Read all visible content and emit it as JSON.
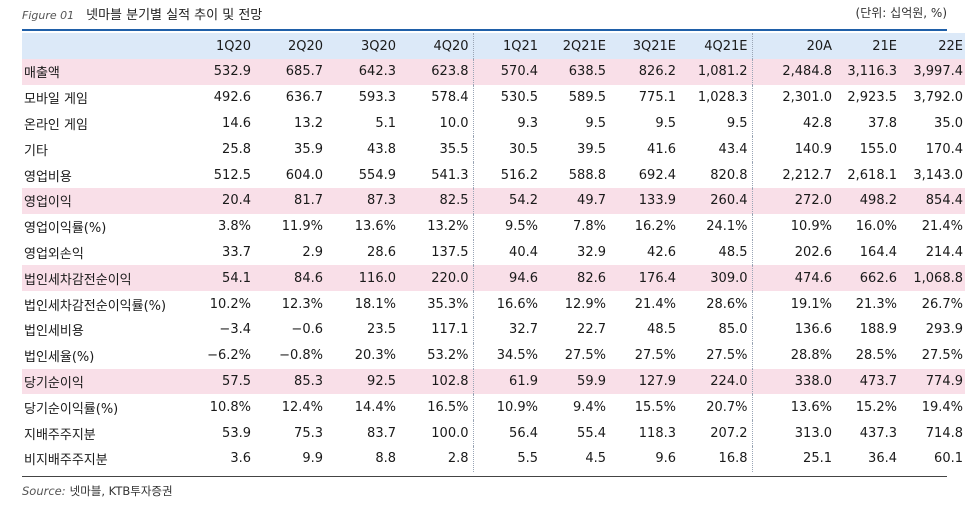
{
  "figure_label": "Figure 01",
  "title": "넷마블 분기별 실적 추이 및 전망",
  "unit": "(단위: 십억원, %)",
  "headers": [
    "",
    "1Q20",
    "2Q20",
    "3Q20",
    "4Q20",
    "1Q21",
    "2Q21E",
    "3Q21E",
    "4Q21E",
    "20A",
    "21E",
    "22E"
  ],
  "rows": [
    {
      "label": "매출액",
      "highlight": true,
      "values": [
        "532.9",
        "685.7",
        "642.3",
        "623.8",
        "570.4",
        "638.5",
        "826.2",
        "1,081.2",
        "2,484.8",
        "3,116.3",
        "3,997.4"
      ]
    },
    {
      "label": "모바일 게임",
      "highlight": false,
      "values": [
        "492.6",
        "636.7",
        "593.3",
        "578.4",
        "530.5",
        "589.5",
        "775.1",
        "1,028.3",
        "2,301.0",
        "2,923.5",
        "3,792.0"
      ]
    },
    {
      "label": "온라인 게임",
      "highlight": false,
      "values": [
        "14.6",
        "13.2",
        "5.1",
        "10.0",
        "9.3",
        "9.5",
        "9.5",
        "9.5",
        "42.8",
        "37.8",
        "35.0"
      ]
    },
    {
      "label": "기타",
      "highlight": false,
      "values": [
        "25.8",
        "35.9",
        "43.8",
        "35.5",
        "30.5",
        "39.5",
        "41.6",
        "43.4",
        "140.9",
        "155.0",
        "170.4"
      ]
    },
    {
      "label": "영업비용",
      "highlight": false,
      "values": [
        "512.5",
        "604.0",
        "554.9",
        "541.3",
        "516.2",
        "588.8",
        "692.4",
        "820.8",
        "2,212.7",
        "2,618.1",
        "3,143.0"
      ]
    },
    {
      "label": "영업이익",
      "highlight": true,
      "values": [
        "20.4",
        "81.7",
        "87.3",
        "82.5",
        "54.2",
        "49.7",
        "133.9",
        "260.4",
        "272.0",
        "498.2",
        "854.4"
      ]
    },
    {
      "label": "영업이익률(%)",
      "highlight": false,
      "values": [
        "3.8%",
        "11.9%",
        "13.6%",
        "13.2%",
        "9.5%",
        "7.8%",
        "16.2%",
        "24.1%",
        "10.9%",
        "16.0%",
        "21.4%"
      ]
    },
    {
      "label": "영업외손익",
      "highlight": false,
      "values": [
        "33.7",
        "2.9",
        "28.6",
        "137.5",
        "40.4",
        "32.9",
        "42.6",
        "48.5",
        "202.6",
        "164.4",
        "214.4"
      ]
    },
    {
      "label": "법인세차감전순이익",
      "highlight": true,
      "values": [
        "54.1",
        "84.6",
        "116.0",
        "220.0",
        "94.6",
        "82.6",
        "176.4",
        "309.0",
        "474.6",
        "662.6",
        "1,068.8"
      ]
    },
    {
      "label": "법인세차감전순이익률(%)",
      "highlight": false,
      "values": [
        "10.2%",
        "12.3%",
        "18.1%",
        "35.3%",
        "16.6%",
        "12.9%",
        "21.4%",
        "28.6%",
        "19.1%",
        "21.3%",
        "26.7%"
      ]
    },
    {
      "label": "법인세비용",
      "highlight": false,
      "values": [
        "−3.4",
        "−0.6",
        "23.5",
        "117.1",
        "32.7",
        "22.7",
        "48.5",
        "85.0",
        "136.6",
        "188.9",
        "293.9"
      ]
    },
    {
      "label": "법인세율(%)",
      "highlight": false,
      "values": [
        "−6.2%",
        "−0.8%",
        "20.3%",
        "53.2%",
        "34.5%",
        "27.5%",
        "27.5%",
        "27.5%",
        "28.8%",
        "28.5%",
        "27.5%"
      ]
    },
    {
      "label": "당기순이익",
      "highlight": true,
      "values": [
        "57.5",
        "85.3",
        "92.5",
        "102.8",
        "61.9",
        "59.9",
        "127.9",
        "224.0",
        "338.0",
        "473.7",
        "774.9"
      ]
    },
    {
      "label": "당기순이익률(%)",
      "highlight": false,
      "values": [
        "10.8%",
        "12.4%",
        "14.4%",
        "16.5%",
        "10.9%",
        "9.4%",
        "15.5%",
        "20.7%",
        "13.6%",
        "15.2%",
        "19.4%"
      ]
    },
    {
      "label": "지배주주지분",
      "highlight": false,
      "values": [
        "53.9",
        "75.3",
        "83.7",
        "100.0",
        "56.4",
        "55.4",
        "118.3",
        "207.2",
        "313.0",
        "437.3",
        "714.8"
      ]
    },
    {
      "label": "비지배주주지분",
      "highlight": false,
      "values": [
        "3.6",
        "9.9",
        "8.8",
        "2.8",
        "5.5",
        "4.5",
        "9.6",
        "16.8",
        "25.1",
        "36.4",
        "60.1"
      ]
    }
  ],
  "source_label": "Source:",
  "source_text": "넷마블, KTB투자증권",
  "colors": {
    "header_bg": "#dce9f8",
    "highlight_bg": "#f9dfe8",
    "rule": "#1f5fa8"
  }
}
